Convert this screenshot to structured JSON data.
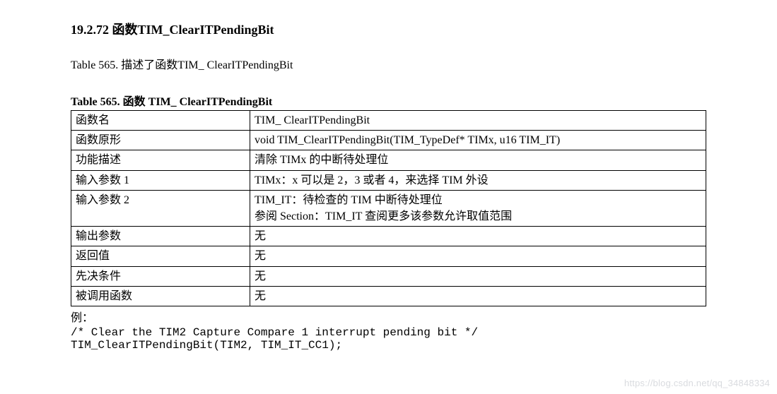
{
  "heading": "19.2.72  函数TIM_ClearITPendingBit",
  "intro": "Table 565.  描述了函数TIM_ ClearITPendingBit",
  "table_caption": "Table 565.  函数 TIM_ ClearITPendingBit",
  "table": {
    "rows": [
      {
        "label": "函数名",
        "value": "TIM_ ClearITPendingBit"
      },
      {
        "label": "函数原形",
        "value": "void TIM_ClearITPendingBit(TIM_TypeDef* TIMx, u16 TIM_IT)"
      },
      {
        "label": "功能描述",
        "value": "清除 TIMx 的中断待处理位"
      },
      {
        "label": "输入参数 1",
        "value": "TIMx：x 可以是 2，3 或者 4，来选择 TIM 外设"
      },
      {
        "label": "输入参数 2",
        "value": "TIM_IT：待检查的 TIM 中断待处理位\n参阅 Section：TIM_IT 查阅更多该参数允许取值范围"
      },
      {
        "label": "输出参数",
        "value": "无"
      },
      {
        "label": "返回值",
        "value": "无"
      },
      {
        "label": "先决条件",
        "value": "无"
      },
      {
        "label": "被调用函数",
        "value": "无"
      }
    ]
  },
  "example_label": "例：",
  "code_lines": [
    "/* Clear the TIM2 Capture Compare 1 interrupt pending bit */",
    "TIM_ClearITPendingBit(TIM2, TIM_IT_CC1);"
  ],
  "watermark": "https://blog.csdn.net/qq_34848334"
}
